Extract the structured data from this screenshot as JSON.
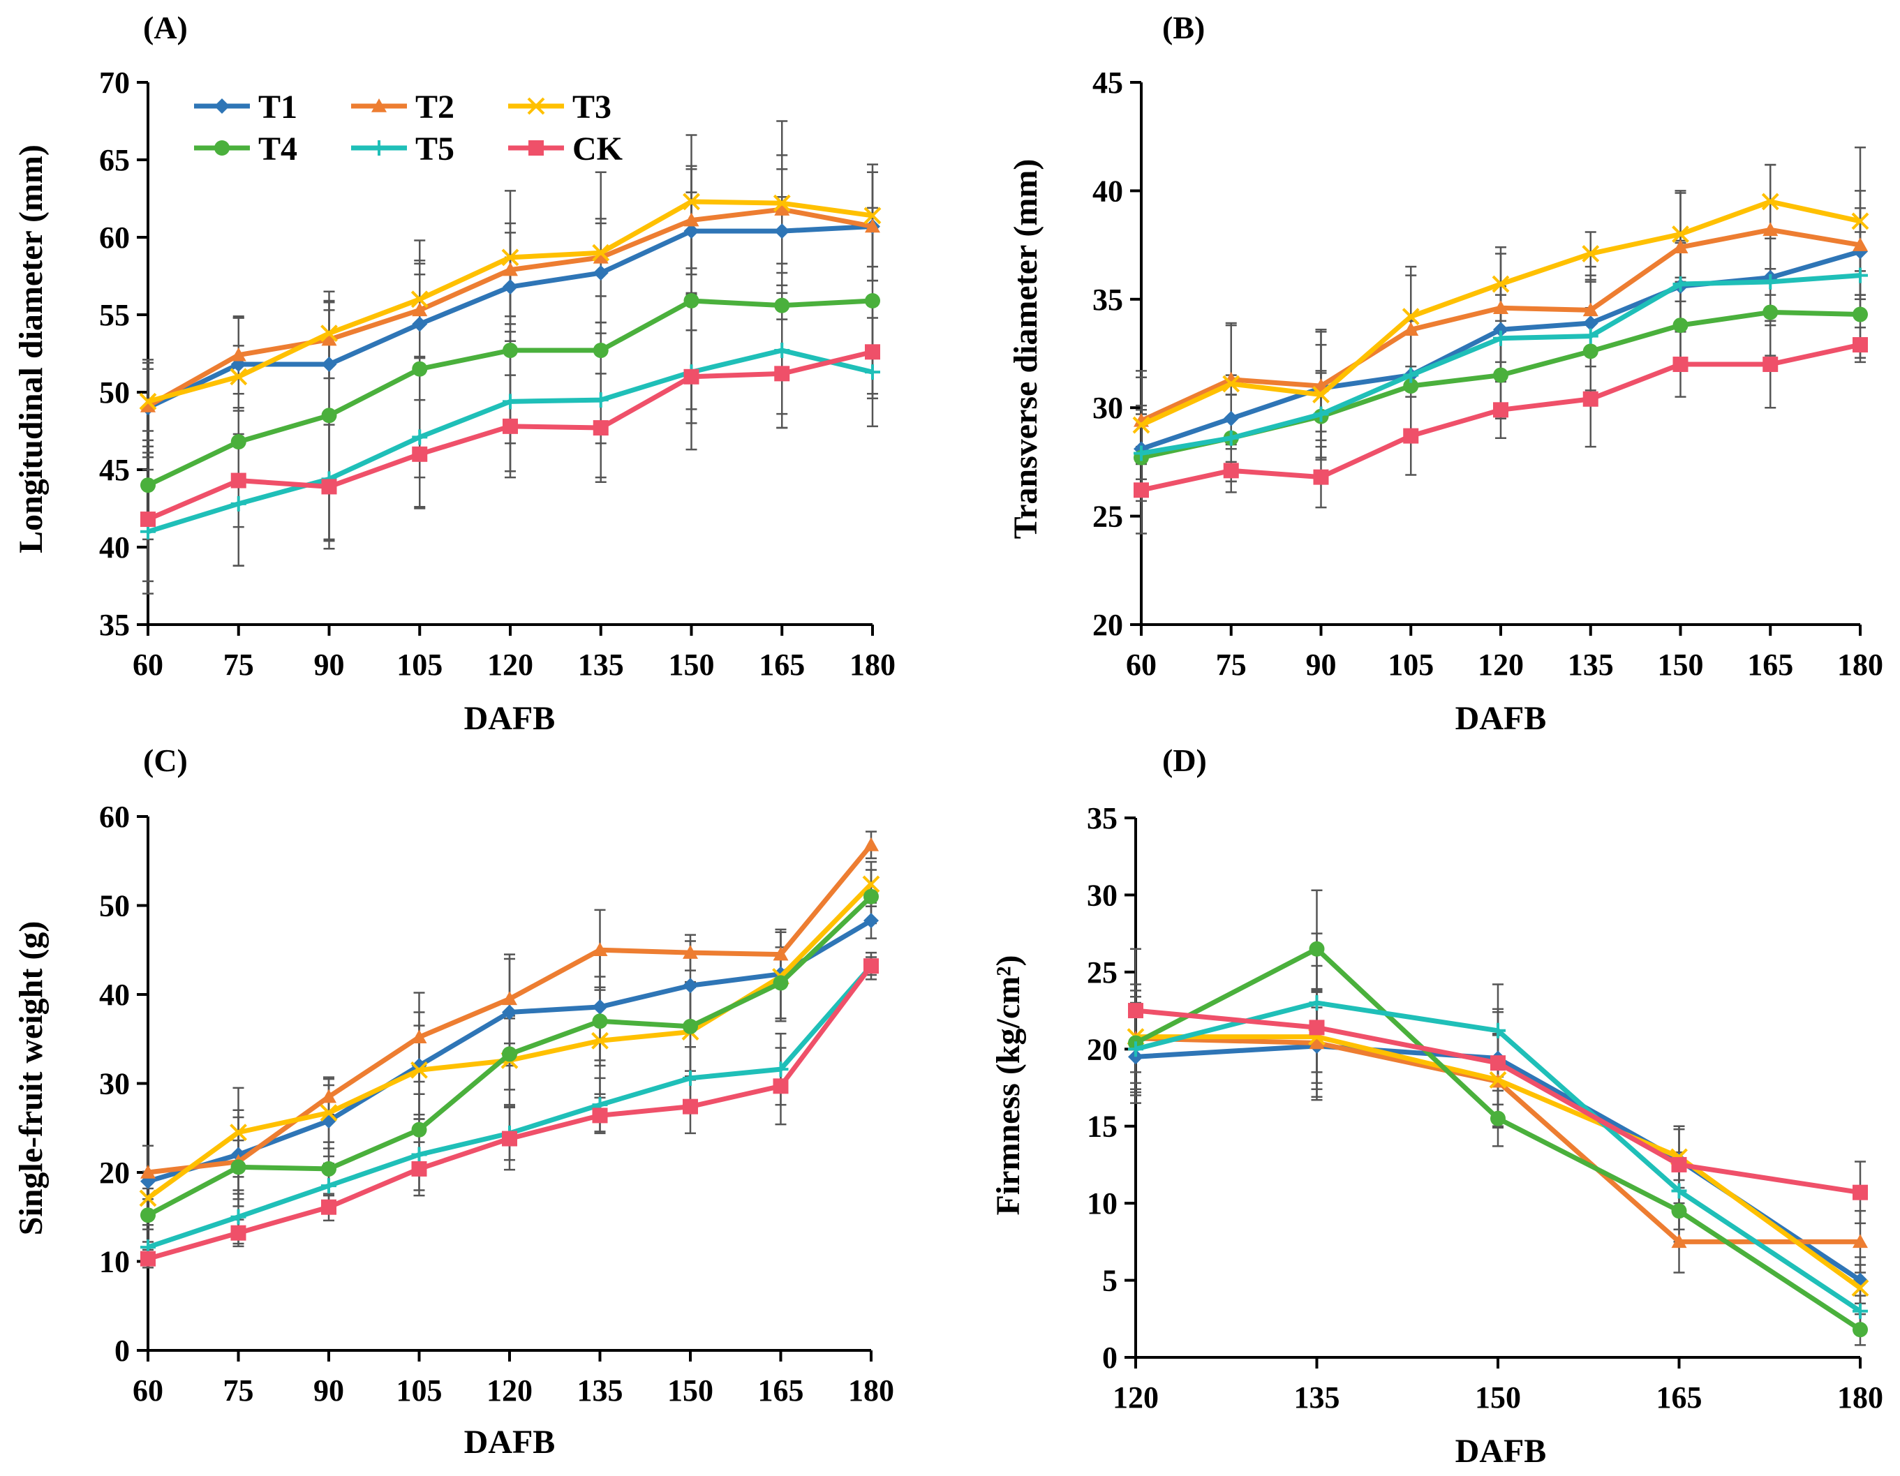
{
  "series_styles": [
    {
      "name": "T1",
      "color": "#2e75b6",
      "marker": "diamond"
    },
    {
      "name": "T2",
      "color": "#ed7d31",
      "marker": "triangle"
    },
    {
      "name": "T3",
      "color": "#ffc000",
      "marker": "x"
    },
    {
      "name": "T4",
      "color": "#4ab03c",
      "marker": "circle"
    },
    {
      "name": "T5",
      "color": "#1fbfb8",
      "marker": "plus"
    },
    {
      "name": "CK",
      "color": "#ef5069",
      "marker": "square"
    }
  ],
  "chart_data": [
    {
      "type": "line",
      "panel": "(A)",
      "title": "",
      "xlabel": "DAFB",
      "ylabel": "Longitudinal diameter (mm)",
      "x": [
        "60",
        "75",
        "90",
        "105",
        "120",
        "135",
        "150",
        "165",
        "180"
      ],
      "ylim": [
        35,
        70
      ],
      "yticks": [
        "35",
        "40",
        "45",
        "50",
        "55",
        "60",
        "65",
        "70"
      ],
      "legend": "top-left",
      "series": [
        {
          "name": "T1",
          "values": [
            49.0,
            51.8,
            51.8,
            54.4,
            56.8,
            57.7,
            60.4,
            60.4,
            60.7
          ],
          "errors": [
            2.5,
            3.0,
            3.5,
            3.2,
            3.5,
            3.2,
            4.0,
            4.0,
            3.5
          ]
        },
        {
          "name": "T2",
          "values": [
            49.1,
            52.4,
            53.4,
            55.3,
            57.9,
            58.7,
            61.1,
            61.8,
            60.7
          ],
          "errors": [
            3.0,
            2.5,
            2.5,
            3.0,
            3.0,
            2.5,
            3.5,
            3.5,
            3.5
          ]
        },
        {
          "name": "T3",
          "values": [
            49.4,
            51.0,
            53.8,
            56.0,
            58.7,
            59.0,
            62.3,
            62.2,
            61.4
          ],
          "errors": [
            2.5,
            2.0,
            2.0,
            3.8,
            4.3,
            5.2,
            4.3,
            5.3,
            3.3
          ]
        },
        {
          "name": "T4",
          "values": [
            44.0,
            46.8,
            48.5,
            51.5,
            52.7,
            52.7,
            55.9,
            55.6,
            55.9
          ],
          "errors": [
            3.5,
            8.0,
            8.0,
            7.0,
            6.0,
            6.0,
            7.0,
            7.0,
            6.0
          ]
        },
        {
          "name": "T5",
          "values": [
            41.0,
            42.8,
            44.4,
            47.1,
            49.4,
            49.5,
            51.3,
            52.7,
            51.3
          ],
          "errors": [
            4.0,
            4.0,
            4.0,
            4.5,
            4.5,
            5.0,
            5.0,
            5.0,
            3.5
          ]
        },
        {
          "name": "CK",
          "values": [
            41.8,
            44.3,
            43.9,
            46.0,
            47.8,
            47.7,
            51.0,
            51.2,
            52.6
          ],
          "errors": [
            4.0,
            3.0,
            4.0,
            3.5,
            3.3,
            3.5,
            3.0,
            3.5,
            3.0
          ]
        }
      ]
    },
    {
      "type": "line",
      "panel": "(B)",
      "title": "",
      "xlabel": "DAFB",
      "ylabel": "Transverse  diameter (mm)",
      "x": [
        "60",
        "75",
        "90",
        "105",
        "120",
        "135",
        "150",
        "165",
        "180"
      ],
      "ylim": [
        20,
        45
      ],
      "yticks": [
        "20",
        "25",
        "30",
        "35",
        "40",
        "45"
      ],
      "series": [
        {
          "name": "T1",
          "values": [
            28.1,
            29.5,
            30.9,
            31.5,
            33.6,
            33.9,
            35.6,
            36.0,
            37.2
          ],
          "errors": [
            2.0,
            2.0,
            2.0,
            2.5,
            2.0,
            2.0,
            2.0,
            2.0,
            2.0
          ]
        },
        {
          "name": "T2",
          "values": [
            29.4,
            31.3,
            31.0,
            33.6,
            34.6,
            34.5,
            37.4,
            38.2,
            37.5
          ],
          "errors": [
            2.0,
            2.5,
            2.5,
            2.5,
            2.5,
            2.0,
            2.5,
            3.0,
            2.5
          ]
        },
        {
          "name": "T3",
          "values": [
            29.2,
            31.1,
            30.6,
            34.2,
            35.7,
            37.1,
            38.0,
            39.5,
            38.6
          ],
          "errors": [
            2.5,
            2.8,
            3.0,
            2.3,
            1.7,
            1.0,
            2.0,
            1.7,
            3.4
          ]
        },
        {
          "name": "T4",
          "values": [
            27.7,
            28.6,
            29.6,
            31.0,
            31.5,
            32.6,
            33.8,
            34.4,
            34.3
          ],
          "errors": [
            2.0,
            2.0,
            2.0,
            2.5,
            2.0,
            2.0,
            2.0,
            2.0,
            2.0
          ]
        },
        {
          "name": "T5",
          "values": [
            27.9,
            28.6,
            29.7,
            31.5,
            33.2,
            33.3,
            35.7,
            35.8,
            36.1
          ],
          "errors": [
            2.0,
            2.0,
            2.0,
            2.5,
            2.0,
            2.5,
            2.0,
            2.0,
            2.0
          ]
        },
        {
          "name": "CK",
          "values": [
            26.2,
            27.1,
            26.8,
            28.7,
            29.9,
            30.4,
            32.0,
            32.0,
            32.9
          ],
          "errors": [
            2.0,
            1.0,
            1.4,
            1.8,
            1.3,
            2.2,
            1.5,
            2.0,
            0.8
          ]
        }
      ]
    },
    {
      "type": "line",
      "panel": "(C)",
      "title": "",
      "xlabel": "DAFB",
      "ylabel": "Single-fruit weight (g)",
      "x": [
        "60",
        "75",
        "90",
        "105",
        "120",
        "135",
        "150",
        "165",
        "180"
      ],
      "ylim": [
        0,
        60
      ],
      "yticks": [
        "0",
        "10",
        "20",
        "30",
        "40",
        "50",
        "60"
      ],
      "series": [
        {
          "name": "T1",
          "values": [
            19.0,
            22.0,
            25.8,
            32.0,
            38.0,
            38.6,
            41.0,
            42.3,
            48.3
          ],
          "errors": [
            4.0,
            5.0,
            4.0,
            6.0,
            6.0,
            6.0,
            5.0,
            5.0,
            2.0
          ]
        },
        {
          "name": "T2",
          "values": [
            20.0,
            21.2,
            28.5,
            35.2,
            39.5,
            45.0,
            44.7,
            44.5,
            56.8
          ],
          "errors": [
            3.0,
            5.0,
            2.0,
            5.0,
            5.0,
            4.5,
            2.0,
            2.5,
            1.5
          ]
        },
        {
          "name": "T3",
          "values": [
            17.1,
            24.5,
            26.7,
            31.5,
            32.6,
            34.8,
            35.8,
            42.0,
            52.4
          ],
          "errors": [
            3.0,
            5.0,
            4.0,
            5.0,
            5.0,
            6.0,
            5.0,
            5.0,
            2.5
          ]
        },
        {
          "name": "T4",
          "values": [
            15.2,
            20.6,
            20.4,
            24.8,
            33.3,
            37.0,
            36.4,
            41.3,
            51.0
          ],
          "errors": [
            3.0,
            3.0,
            3.0,
            4.0,
            4.0,
            5.0,
            5.0,
            4.0,
            3.0
          ]
        },
        {
          "name": "T5",
          "values": [
            11.6,
            15.0,
            18.5,
            22.0,
            24.4,
            27.6,
            30.6,
            31.6,
            43.2
          ],
          "errors": [
            2.0,
            3.0,
            2.5,
            4.0,
            3.0,
            3.0,
            3.5,
            4.0,
            1.5
          ]
        },
        {
          "name": "CK",
          "values": [
            10.3,
            13.2,
            16.1,
            20.4,
            23.8,
            26.4,
            27.4,
            29.7,
            43.2
          ],
          "errors": [
            1.0,
            1.5,
            1.5,
            3.0,
            3.5,
            2.0,
            3.0,
            4.3,
            1.0
          ]
        }
      ]
    },
    {
      "type": "line",
      "panel": "(D)",
      "title": "",
      "xlabel": "DAFB",
      "ylabel": "Firmness (kg/cm²)",
      "x": [
        "120",
        "135",
        "150",
        "165",
        "180"
      ],
      "ylim": [
        0,
        35
      ],
      "yticks": [
        "0",
        "5",
        "10",
        "15",
        "20",
        "25",
        "30",
        "35"
      ],
      "series": [
        {
          "name": "T1",
          "values": [
            19.5,
            20.2,
            19.4,
            12.8,
            5.0
          ],
          "errors": [
            3.0,
            3.5,
            3.0,
            2.0,
            1.5
          ]
        },
        {
          "name": "T2",
          "values": [
            20.7,
            20.4,
            17.9,
            7.5,
            7.5
          ],
          "errors": [
            3.5,
            3.5,
            3.0,
            2.0,
            2.0
          ]
        },
        {
          "name": "T3",
          "values": [
            20.8,
            20.8,
            18.0,
            13.0,
            4.5
          ],
          "errors": [
            3.0,
            3.0,
            3.0,
            2.0,
            1.5
          ]
        },
        {
          "name": "T4",
          "values": [
            20.4,
            26.5,
            15.5,
            9.5,
            1.8
          ],
          "errors": [
            3.0,
            3.8,
            1.8,
            2.0,
            1.0
          ]
        },
        {
          "name": "T5",
          "values": [
            20.0,
            23.0,
            21.2,
            10.8,
            3.0
          ],
          "errors": [
            3.0,
            4.5,
            3.0,
            2.5,
            1.0
          ]
        },
        {
          "name": "CK",
          "values": [
            22.5,
            21.4,
            19.1,
            12.5,
            10.7
          ],
          "errors": [
            4.0,
            4.0,
            3.5,
            2.5,
            2.0
          ]
        }
      ]
    }
  ]
}
